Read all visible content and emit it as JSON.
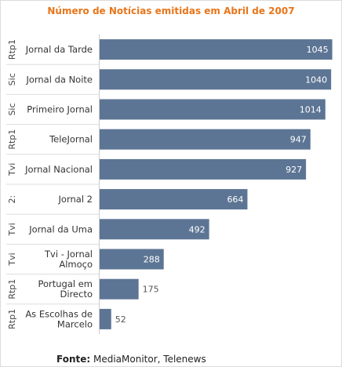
{
  "chart_data": {
    "type": "bar",
    "orientation": "horizontal",
    "title": "Número de Notícias emitidas em Abril de 2007",
    "groups": [
      "Rtp1",
      "Sic",
      "Sic",
      "Rtp1",
      "Tvi",
      "2:",
      "Tvi",
      "Tvi",
      "Rtp1",
      "Rtp1"
    ],
    "categories": [
      [
        "Jornal da Tarde"
      ],
      [
        "Jornal da Noite"
      ],
      [
        "Primeiro Jornal"
      ],
      [
        "TeleJornal"
      ],
      [
        "Jornal Nacional"
      ],
      [
        "Jornal 2"
      ],
      [
        "Jornal da Uma"
      ],
      [
        "Tvi - Jornal",
        "Almoço"
      ],
      [
        "Portugal em",
        "Directo"
      ],
      [
        "As Escolhas de",
        "Marcelo"
      ]
    ],
    "values": [
      1045,
      1040,
      1014,
      947,
      927,
      664,
      492,
      288,
      175,
      52
    ],
    "xlim": [
      0,
      1050
    ],
    "bar_color": "#5d7594",
    "title_color": "#e8751a",
    "grid": false,
    "legend": "none"
  },
  "footer": {
    "label": "Fonte:",
    "text": " MediaMonitor, Telenews"
  }
}
